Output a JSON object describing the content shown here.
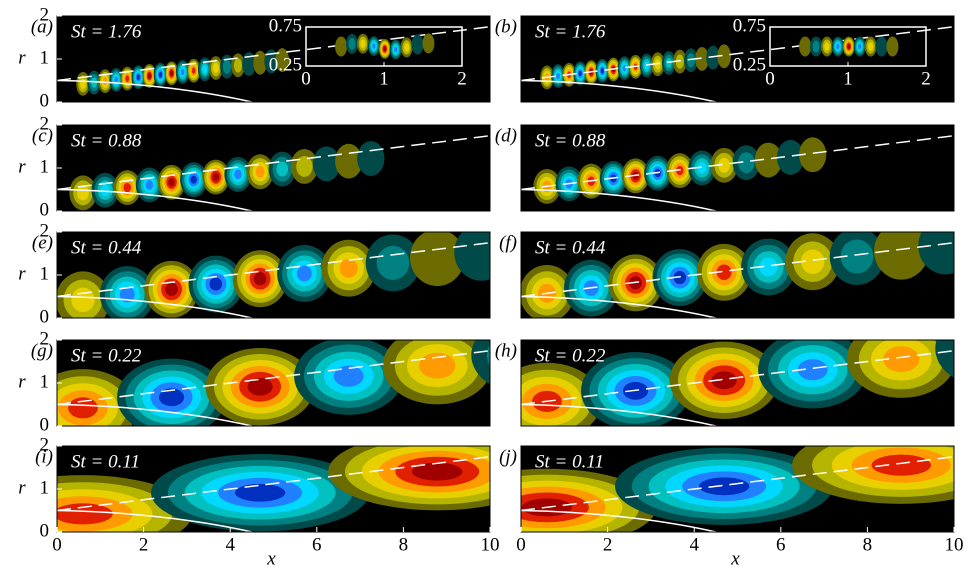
{
  "chart_data": [
    {
      "type": "contour",
      "label": "(a)",
      "annotation": "St = 1.76",
      "xlim": [
        0,
        10
      ],
      "ylim": [
        0,
        2
      ],
      "yticks": [
        0,
        1,
        2
      ],
      "ylabel": "r",
      "inset": {
        "xlim": [
          0,
          2
        ],
        "ylim": [
          0.25,
          0.75
        ],
        "xticks": [
          0,
          1,
          2
        ],
        "yticks": [
          0.25,
          0.75
        ]
      }
    },
    {
      "type": "contour",
      "label": "(b)",
      "annotation": "St = 1.76",
      "xlim": [
        0,
        10
      ],
      "ylim": [
        0,
        2
      ],
      "inset": {
        "xlim": [
          0,
          2
        ],
        "ylim": [
          0.25,
          0.75
        ],
        "xticks": [
          0,
          1,
          2
        ],
        "yticks": [
          0.25,
          0.75
        ]
      }
    },
    {
      "type": "contour",
      "label": "(c)",
      "annotation": "St = 0.88",
      "xlim": [
        0,
        10
      ],
      "ylim": [
        0,
        2
      ],
      "yticks": [
        0,
        1,
        2
      ],
      "ylabel": "r"
    },
    {
      "type": "contour",
      "label": "(d)",
      "annotation": "St = 0.88",
      "xlim": [
        0,
        10
      ],
      "ylim": [
        0,
        2
      ]
    },
    {
      "type": "contour",
      "label": "(e)",
      "annotation": "St = 0.44",
      "xlim": [
        0,
        10
      ],
      "ylim": [
        0,
        2
      ],
      "yticks": [
        0,
        1,
        2
      ],
      "ylabel": "r"
    },
    {
      "type": "contour",
      "label": "(f)",
      "annotation": "St = 0.44",
      "xlim": [
        0,
        10
      ],
      "ylim": [
        0,
        2
      ]
    },
    {
      "type": "contour",
      "label": "(g)",
      "annotation": "St = 0.22",
      "xlim": [
        0,
        10
      ],
      "ylim": [
        0,
        2
      ],
      "yticks": [
        0,
        1,
        2
      ],
      "ylabel": "r"
    },
    {
      "type": "contour",
      "label": "(h)",
      "annotation": "St = 0.22",
      "xlim": [
        0,
        10
      ],
      "ylim": [
        0,
        2
      ]
    },
    {
      "type": "contour",
      "label": "(i)",
      "annotation": "St = 0.11",
      "xlim": [
        0,
        10
      ],
      "ylim": [
        0,
        2
      ],
      "yticks": [
        0,
        1,
        2
      ],
      "ylabel": "r",
      "xticks": [
        0,
        2,
        4,
        6,
        8,
        10
      ],
      "xlabel": "x"
    },
    {
      "type": "contour",
      "label": "(j)",
      "annotation": "St = 0.11",
      "xlim": [
        0,
        10
      ],
      "ylim": [
        0,
        2
      ],
      "xticks": [
        0,
        2,
        4,
        6,
        8,
        10
      ],
      "xlabel": "x"
    }
  ]
}
